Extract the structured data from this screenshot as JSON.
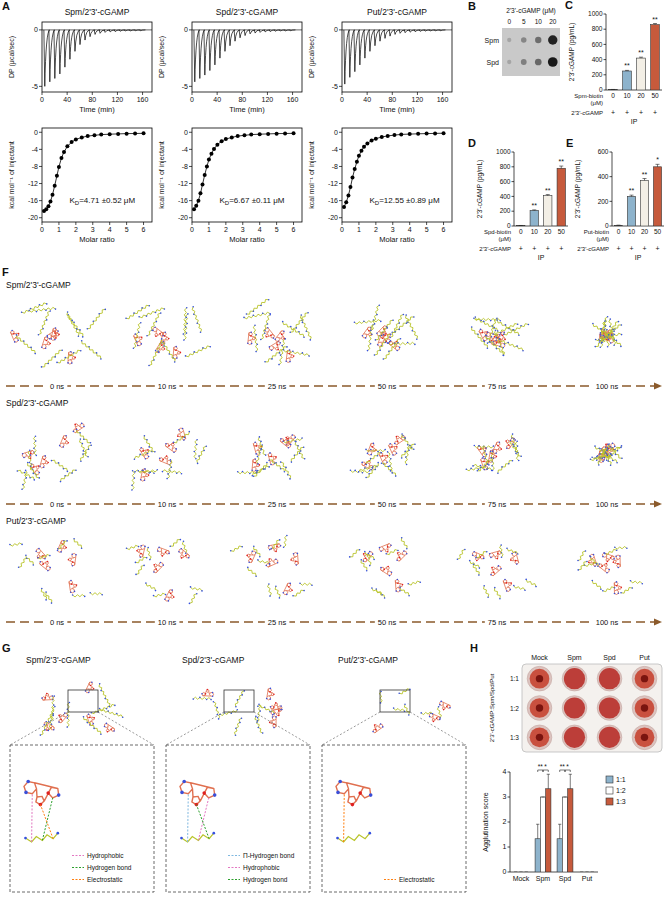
{
  "panels": [
    "A",
    "B",
    "C",
    "D",
    "E",
    "F",
    "G",
    "H"
  ],
  "chart_data": [
    {
      "type": "itc_raw",
      "title": "Spm/2'3'-cGAMP",
      "x_label": "Time (min)",
      "y_label": "DP (μcal/sec)",
      "xlim": [
        0,
        175
      ],
      "xticks": [
        0,
        40,
        80,
        120,
        160
      ],
      "ylim": [
        -5.5,
        0.7
      ],
      "yticks": [
        -5,
        0
      ],
      "color": "#000000",
      "x": [
        3,
        11,
        19,
        27,
        35,
        43,
        51,
        59,
        67,
        75,
        83,
        91,
        99,
        107,
        115,
        123,
        131,
        139,
        147,
        155
      ],
      "values": [
        -5,
        -4.6,
        -4.3,
        -3.9,
        -3.3,
        -2.6,
        -1.9,
        -1.3,
        -0.9,
        -0.6,
        -0.4,
        -0.3,
        -0.22,
        -0.18,
        -0.15,
        -0.12,
        -0.1,
        -0.1,
        -0.08,
        -0.08
      ]
    },
    {
      "type": "itc_fit",
      "x_label": "Molar ratio",
      "y_label": "kcal mol⁻¹ of injectant",
      "xlim": [
        0,
        6.5
      ],
      "xticks": [
        0,
        1,
        2,
        3,
        4,
        5,
        6
      ],
      "ylim": [
        -21,
        1
      ],
      "yticks": [
        -20,
        -16,
        -12,
        -8,
        -4,
        0
      ],
      "color": "#000000",
      "marker": "circle",
      "line_style": "solid",
      "x": [
        0.12,
        0.25,
        0.38,
        0.5,
        0.62,
        0.75,
        0.88,
        1.0,
        1.15,
        1.3,
        1.5,
        1.75,
        2.0,
        2.35,
        2.7,
        3.1,
        3.5,
        4.0,
        4.5,
        5.0,
        5.5,
        6.0
      ],
      "values": [
        -18.4,
        -18.0,
        -17.3,
        -16.2,
        -14.6,
        -12.5,
        -10.2,
        -8.1,
        -6.0,
        -4.6,
        -3.3,
        -2.3,
        -1.7,
        -1.2,
        -0.9,
        -0.7,
        -0.55,
        -0.45,
        -0.38,
        -0.32,
        -0.28,
        -0.25
      ],
      "annotation": {
        "symbol": "K",
        "subscript": "D",
        "text": "=4.71 ±0.52 μM"
      }
    },
    {
      "type": "itc_raw",
      "title": "Spd/2'3'-cGAMP",
      "x_label": "Time (min)",
      "y_label": "DP (μcal/sec)",
      "xlim": [
        0,
        175
      ],
      "xticks": [
        0,
        40,
        80,
        120,
        160
      ],
      "ylim": [
        -5.5,
        0.7
      ],
      "yticks": [
        -5,
        0
      ],
      "color": "#000000",
      "x": [
        3,
        11,
        19,
        27,
        35,
        43,
        51,
        59,
        67,
        75,
        83,
        91,
        99,
        107,
        115,
        123,
        131,
        139,
        147,
        155
      ],
      "values": [
        -4.6,
        -4.3,
        -4.0,
        -3.6,
        -3.1,
        -2.5,
        -1.9,
        -1.4,
        -1.0,
        -0.7,
        -0.5,
        -0.35,
        -0.28,
        -0.22,
        -0.18,
        -0.15,
        -0.12,
        -0.1,
        -0.1,
        -0.08
      ]
    },
    {
      "type": "itc_fit",
      "x_label": "Molar ratio",
      "y_label": "kcal mol⁻¹ of injectant",
      "xlim": [
        0,
        6.5
      ],
      "xticks": [
        0,
        1,
        2,
        3,
        4,
        5,
        6
      ],
      "ylim": [
        -21,
        1
      ],
      "yticks": [
        -20,
        -16,
        -12,
        -8,
        -4,
        0
      ],
      "color": "#000000",
      "marker": "circle",
      "line_style": "solid",
      "x": [
        0.12,
        0.25,
        0.38,
        0.5,
        0.62,
        0.75,
        0.88,
        1.0,
        1.15,
        1.3,
        1.5,
        1.75,
        2.0,
        2.35,
        2.7,
        3.1,
        3.5,
        4.0,
        4.5,
        5.0,
        5.5,
        6.0
      ],
      "values": [
        -18.0,
        -17.2,
        -16.0,
        -14.3,
        -12.2,
        -10.0,
        -8.0,
        -6.4,
        -5.0,
        -3.9,
        -2.9,
        -2.1,
        -1.6,
        -1.2,
        -0.9,
        -0.7,
        -0.55,
        -0.45,
        -0.38,
        -0.32,
        -0.28,
        -0.25
      ],
      "annotation": {
        "symbol": "K",
        "subscript": "D",
        "text": "=6.67 ±0.11 μM"
      }
    },
    {
      "type": "itc_raw",
      "title": "Put/2'3'-cGAMP",
      "x_label": "Time (min)",
      "y_label": "DP (μcal/sec)",
      "xlim": [
        0,
        175
      ],
      "xticks": [
        0,
        40,
        80,
        120,
        160
      ],
      "ylim": [
        -5.5,
        0.7
      ],
      "yticks": [
        -5,
        0
      ],
      "color": "#000000",
      "x": [
        3,
        11,
        19,
        27,
        35,
        43,
        51,
        59,
        67,
        75,
        83,
        91,
        99,
        107,
        115,
        123,
        131,
        139,
        147,
        155
      ],
      "values": [
        -4.8,
        -4.2,
        -3.7,
        -3.1,
        -2.5,
        -1.9,
        -1.4,
        -1.0,
        -0.75,
        -0.55,
        -0.4,
        -0.3,
        -0.25,
        -0.2,
        -0.16,
        -0.13,
        -0.11,
        -0.1,
        -0.09,
        -0.08
      ]
    },
    {
      "type": "itc_fit",
      "x_label": "Molar ratio",
      "y_label": "kcal mol⁻¹ of injectant",
      "xlim": [
        0,
        6.5
      ],
      "xticks": [
        0,
        1,
        2,
        3,
        4,
        5,
        6
      ],
      "ylim": [
        -21,
        1
      ],
      "yticks": [
        -20,
        -16,
        -12,
        -8,
        -4,
        0
      ],
      "color": "#000000",
      "marker": "circle",
      "line_style": "solid",
      "x": [
        0.12,
        0.25,
        0.38,
        0.5,
        0.62,
        0.75,
        0.88,
        1.0,
        1.15,
        1.3,
        1.5,
        1.75,
        2.0,
        2.35,
        2.7,
        3.1,
        3.5,
        4.0,
        4.5,
        5.0,
        5.5,
        6.0
      ],
      "values": [
        -17.5,
        -16.4,
        -14.8,
        -12.8,
        -10.6,
        -8.6,
        -6.9,
        -5.5,
        -4.3,
        -3.4,
        -2.6,
        -1.9,
        -1.5,
        -1.1,
        -0.85,
        -0.65,
        -0.5,
        -0.42,
        -0.35,
        -0.3,
        -0.26,
        -0.22
      ],
      "annotation": {
        "symbol": "K",
        "subscript": "D",
        "text": "=12.55 ±0.89 μM"
      }
    },
    {
      "type": "bar",
      "y_label": "2'3'-cGAMP (pg/mL)",
      "x_label": "Spm-biotin (μM)",
      "categories": [
        "0",
        "10",
        "20",
        "50"
      ],
      "values": [
        5,
        250,
        420,
        860
      ],
      "errors": [
        2,
        8,
        12,
        15
      ],
      "colors": [
        "#bfbfbf",
        "#8db3cc",
        "#f3efe6",
        "#c65a3c"
      ],
      "ylim": [
        0,
        1000
      ],
      "yticks": [
        0,
        200,
        400,
        600,
        800,
        1000
      ],
      "significance": [
        null,
        "**",
        "**",
        "**"
      ],
      "treatment": {
        "label": "2'3'-cGAMP",
        "values": [
          "+",
          "+",
          "+",
          "+"
        ]
      },
      "footer": "IP"
    },
    {
      "type": "bar",
      "y_label": "2'3'-cGAMP (pg/mL)",
      "x_label": "Spd-biotin (μM)",
      "categories": [
        "0",
        "10",
        "20",
        "50"
      ],
      "values": [
        5,
        210,
        410,
        780
      ],
      "errors": [
        2,
        8,
        15,
        30
      ],
      "colors": [
        "#bfbfbf",
        "#8db3cc",
        "#f3efe6",
        "#c65a3c"
      ],
      "ylim": [
        0,
        1000
      ],
      "yticks": [
        0,
        200,
        400,
        600,
        800,
        1000
      ],
      "significance": [
        null,
        "**",
        "**",
        "**"
      ],
      "treatment": {
        "label": "2'3'-cGAMP",
        "values": [
          "+",
          "+",
          "+",
          "+"
        ]
      },
      "footer": "IP"
    },
    {
      "type": "bar",
      "y_label": "2'3'-cGAMP (pg/mL)",
      "x_label": "Put-biotin (μM)",
      "categories": [
        "0",
        "10",
        "20",
        "50"
      ],
      "values": [
        5,
        240,
        370,
        480
      ],
      "errors": [
        2,
        10,
        15,
        20
      ],
      "colors": [
        "#bfbfbf",
        "#8db3cc",
        "#f3efe6",
        "#c65a3c"
      ],
      "ylim": [
        0,
        600
      ],
      "yticks": [
        0,
        200,
        400,
        600
      ],
      "significance": [
        null,
        "**",
        "**",
        "*"
      ],
      "treatment": {
        "label": "2'3'-cGAMP",
        "values": [
          "+",
          "+",
          "+",
          "+"
        ]
      },
      "footer": "IP"
    },
    {
      "type": "bar",
      "y_label": "Agglutination score",
      "categories": [
        "Mock",
        "Spm",
        "Spd",
        "Put"
      ],
      "ylim": [
        0,
        4
      ],
      "yticks": [
        0,
        1,
        2,
        3,
        4
      ],
      "legend": "right",
      "series": [
        {
          "name": "1:1",
          "color": "#8db3cc",
          "values": [
            0,
            1.33,
            1.33,
            0
          ],
          "errors": [
            0,
            0.58,
            0.58,
            0
          ]
        },
        {
          "name": "1:2",
          "color": "#ffffff",
          "values": [
            0,
            3,
            3,
            0
          ],
          "errors": [
            0,
            0,
            0,
            0
          ]
        },
        {
          "name": "1:3",
          "color": "#c65a3c",
          "values": [
            0,
            3.33,
            3.33,
            0
          ],
          "errors": [
            0,
            0.58,
            0.58,
            0
          ]
        }
      ],
      "significance": [
        null,
        [
          "**",
          "*"
        ],
        [
          "**",
          "*"
        ],
        null
      ]
    }
  ],
  "blot": {
    "title": "2'3'-cGAMP (μM)",
    "columns": [
      0,
      5,
      10,
      20
    ],
    "rows": [
      "Spm",
      "Spd"
    ],
    "signal": [
      [
        0.05,
        0.25,
        0.4,
        0.9
      ],
      [
        0.05,
        0.3,
        0.45,
        0.95
      ]
    ]
  },
  "md": {
    "rows": [
      "Spm/2'3'-cGAMP",
      "Spd/2'3'-cGAMP",
      "Put/2'3'-cGAMP"
    ],
    "times": [
      "0 ns",
      "10 ns",
      "25 ns",
      "50 ns",
      "75 ns",
      "100 ns"
    ]
  },
  "interactions": [
    {
      "title": "Spm/2'3'-cGAMP",
      "legend": [
        {
          "label": "Hydrophobic",
          "color": "#e377c2"
        },
        {
          "label": "Hydrogen bond",
          "color": "#2ca02c"
        },
        {
          "label": "Electrostatic",
          "color": "#ff7f0e"
        }
      ]
    },
    {
      "title": "Spd/2'3'-cGAMP",
      "legend": [
        {
          "label": "Π-Hydrogen bond",
          "color": "#7fb8e0"
        },
        {
          "label": "Hydrophobic",
          "color": "#e377c2"
        },
        {
          "label": "Hydrogen bond",
          "color": "#2ca02c"
        }
      ]
    },
    {
      "title": "Put/2'3'-cGAMP",
      "legend": [
        {
          "label": "Electrostatic",
          "color": "#ff7f0e"
        }
      ]
    }
  ],
  "plate": {
    "columns": [
      "Mock",
      "Spm",
      "Spd",
      "Put"
    ],
    "rows": [
      "1:1",
      "1:2",
      "1:3"
    ],
    "row_title": "2'3'-cGAMP:Spm/Spd/Put"
  }
}
